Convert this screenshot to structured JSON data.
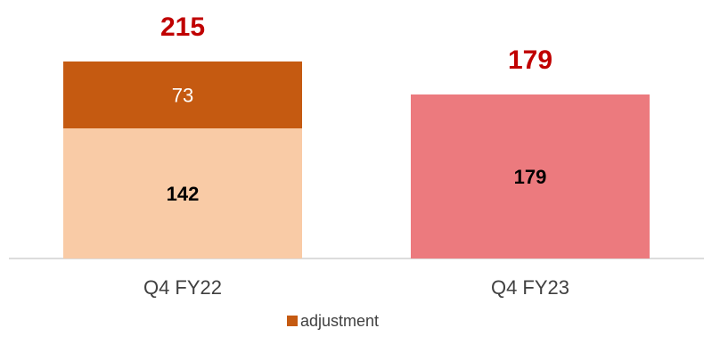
{
  "chart_data": {
    "type": "stacked_bar",
    "categories": [
      "Q4 FY22",
      "Q4 FY23"
    ],
    "series": [
      {
        "colors": [
          "#f9cba6",
          "#ec7a7e"
        ],
        "values": [
          142,
          179
        ]
      },
      {
        "name": "adjustment",
        "color": "#c55a11",
        "values": [
          73,
          null
        ]
      }
    ],
    "totals": [
      215,
      179
    ],
    "legend": "bottom"
  }
}
